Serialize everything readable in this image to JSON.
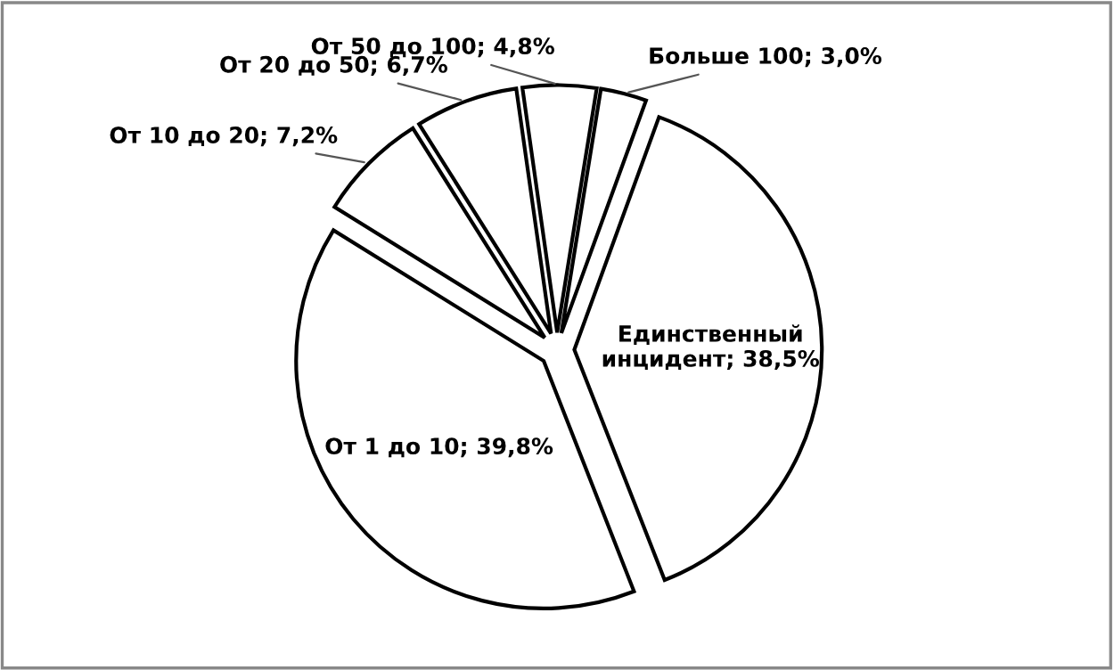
{
  "chart_data": {
    "type": "pie",
    "categories": [
      "Единственный инцидент",
      "От 1 до 10",
      "От 10 до 20",
      "От 20 до 50",
      "От 50 до 100",
      "Больше 100"
    ],
    "values": [
      38.5,
      39.8,
      7.2,
      6.7,
      4.8,
      3.0
    ],
    "colors": [
      "#ffffff",
      "#ffffff",
      "#ffffff",
      "#ffffff",
      "#ffffff",
      "#ffffff"
    ],
    "value_labels": [
      "38,5%",
      "39,8%",
      "7,2%",
      "6,7%",
      "4,8%",
      "3,0%"
    ],
    "legend": false
  }
}
